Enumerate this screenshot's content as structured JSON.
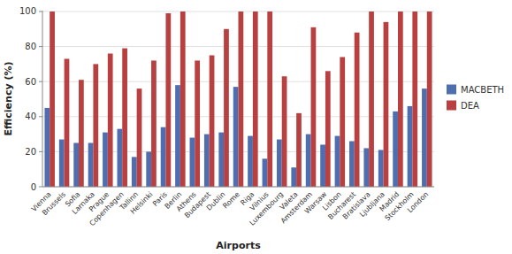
{
  "chart_data": {
    "type": "bar",
    "xlabel": "Airports",
    "ylabel": "Efficiency (%)",
    "categories": [
      "Vienna",
      "Brussels",
      "Sofia",
      "Larnaka",
      "Prague",
      "Copenhagen",
      "Tallinn",
      "Helsinki",
      "Paris",
      "Berlin",
      "Athens",
      "Budapest",
      "Dublin",
      "Rome",
      "Riga",
      "Vilnius",
      "Luxembourg",
      "Valeta",
      "Amsterdam",
      "Warsaw",
      "Lisbon",
      "Bucharest",
      "Bratislava",
      "Ljubljana",
      "Madrid",
      "Stockholm",
      "London"
    ],
    "series": [
      {
        "name": "MACBETH",
        "color": "#4F6EAF",
        "values": [
          45,
          27,
          25,
          25,
          31,
          33,
          17,
          20,
          34,
          58,
          28,
          30,
          31,
          57,
          29,
          16,
          27,
          11,
          30,
          24,
          29,
          26,
          22,
          21,
          43,
          46,
          56
        ]
      },
      {
        "name": "DEA",
        "color": "#B94040",
        "values": [
          100,
          73,
          61,
          70,
          76,
          79,
          56,
          72,
          99,
          100,
          72,
          75,
          90,
          100,
          100,
          100,
          63,
          42,
          91,
          66,
          74,
          88,
          100,
          94,
          100,
          100,
          100
        ]
      }
    ],
    "ylim": [
      0,
      100.5
    ],
    "yticks": [
      0,
      20,
      40,
      60,
      80,
      100
    ],
    "grid": true,
    "legend": "right"
  }
}
